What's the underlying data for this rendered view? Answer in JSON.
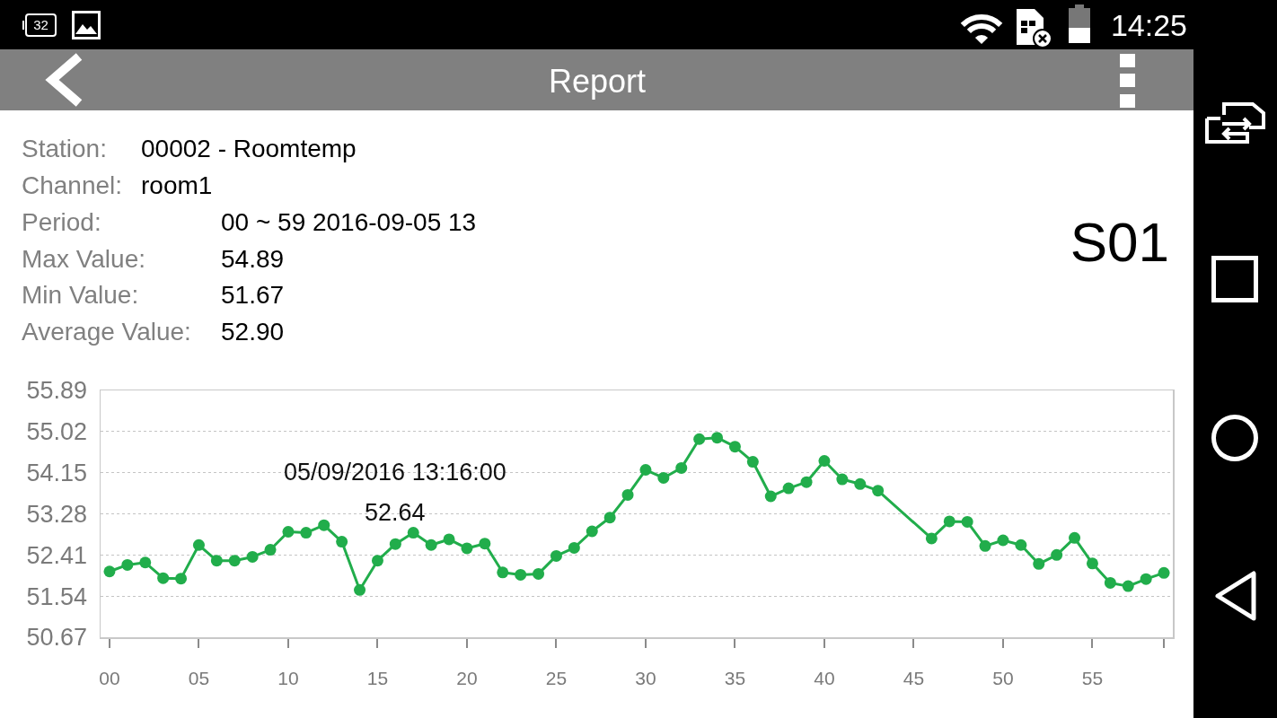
{
  "chart_data": {
    "type": "line",
    "title": "Report",
    "x": [
      0,
      1,
      2,
      3,
      4,
      5,
      6,
      7,
      8,
      9,
      10,
      11,
      12,
      13,
      14,
      15,
      16,
      17,
      18,
      19,
      20,
      21,
      22,
      23,
      24,
      25,
      26,
      27,
      28,
      29,
      30,
      31,
      32,
      33,
      34,
      35,
      36,
      37,
      38,
      39,
      40,
      41,
      42,
      43,
      46,
      47,
      48,
      49,
      50,
      51,
      52,
      53,
      54,
      55,
      56,
      57,
      58,
      59
    ],
    "series": [
      {
        "color": "#21ad4b",
        "values": [
          52.06,
          52.2,
          52.25,
          51.92,
          51.91,
          52.62,
          52.29,
          52.29,
          52.37,
          52.52,
          52.9,
          52.88,
          53.04,
          52.69,
          51.67,
          52.29,
          52.64,
          52.88,
          52.62,
          52.74,
          52.55,
          52.65,
          52.04,
          51.99,
          52.01,
          52.39,
          52.56,
          52.91,
          53.2,
          53.68,
          54.21,
          54.04,
          54.25,
          54.86,
          54.89,
          54.7,
          54.38,
          53.65,
          53.82,
          53.95,
          54.4,
          54.01,
          53.91,
          53.77,
          52.76,
          53.12,
          53.11,
          52.6,
          52.72,
          52.62,
          52.22,
          52.41,
          52.77,
          52.23,
          51.82,
          51.75,
          51.9,
          52.03
        ]
      }
    ],
    "xlim": [
      -0.5,
      59.5
    ],
    "xticks": [
      {
        "value": 0,
        "label": "00"
      },
      {
        "value": 5,
        "label": "05"
      },
      10,
      15,
      20,
      25,
      30,
      35,
      40,
      45,
      50,
      55,
      {
        "value": 59,
        "label": null
      }
    ],
    "ylim": [
      50.67,
      55.89
    ],
    "yticks": [
      50.67,
      51.54,
      52.41,
      53.28,
      54.15,
      55.02,
      55.89
    ],
    "grid": "y",
    "marker": "circle",
    "line_style": "solid",
    "annotations": [
      "32",
      "14:25",
      "Station:",
      "00002 - Roomtemp",
      "Channel:",
      "room1",
      "Period:",
      "00 ~ 59 2016-09-05 13",
      "Max Value:",
      "54.89",
      "Min Value:",
      "51.67",
      "Average Value:",
      "52.90",
      "S01",
      {
        "text": "05/09/2016 13:16:00",
        "x": 16,
        "y": 52.64
      },
      {
        "text": "52.64",
        "x": 16,
        "y": 52.64
      }
    ]
  }
}
